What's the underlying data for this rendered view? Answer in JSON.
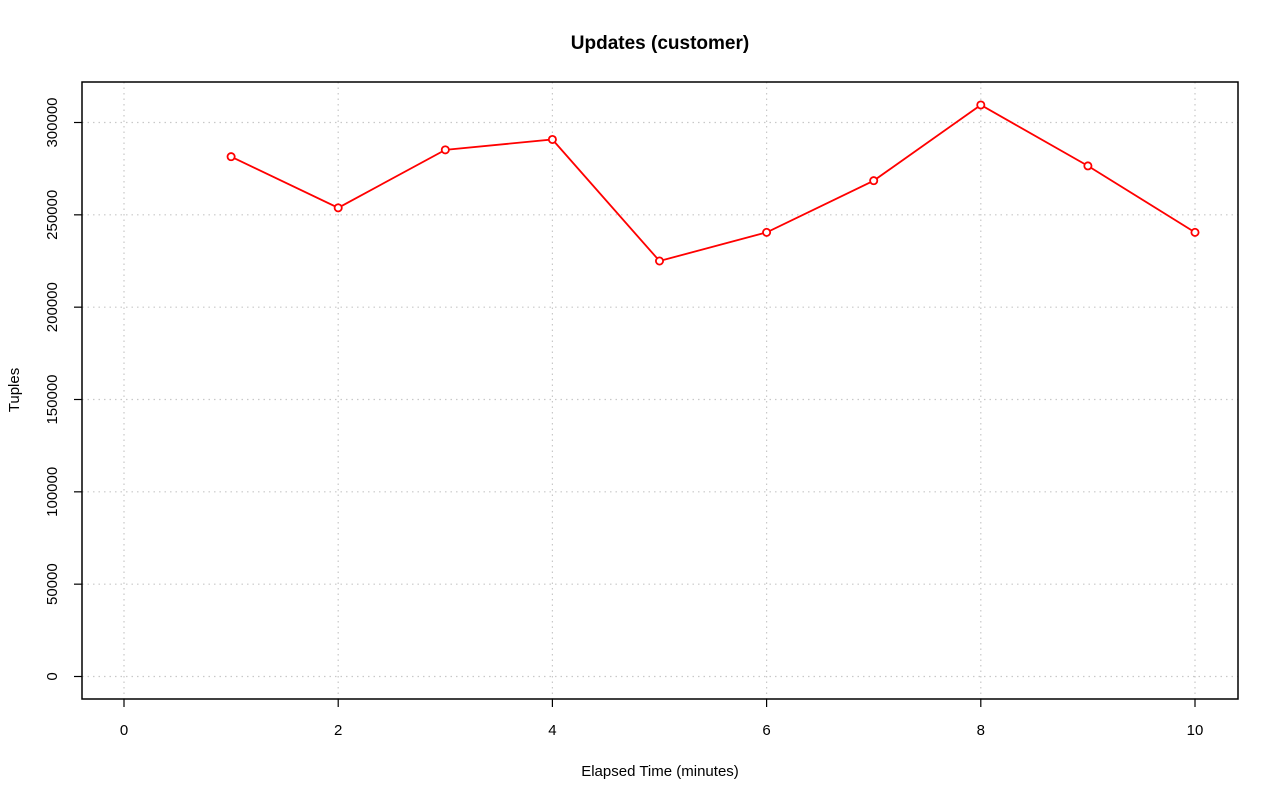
{
  "chart_data": {
    "type": "line",
    "title": "Updates (customer)",
    "xlabel": "Elapsed Time (minutes)",
    "ylabel": "Tuples",
    "xlim": [
      0,
      10
    ],
    "ylim": [
      0,
      300000
    ],
    "x_ticks": [
      "0",
      "2",
      "4",
      "6",
      "8",
      "10"
    ],
    "y_ticks": [
      "0",
      "50000",
      "100000",
      "150000",
      "200000",
      "250000",
      "300000"
    ],
    "grid": true,
    "marker": "open-circle",
    "series": [
      {
        "color": "#ff0000",
        "x": [
          1,
          2,
          3,
          4,
          5,
          6,
          7,
          8,
          9,
          10
        ],
        "y": [
          281500,
          253800,
          285200,
          290800,
          225000,
          240500,
          268500,
          309500,
          276500,
          240500
        ]
      }
    ]
  }
}
